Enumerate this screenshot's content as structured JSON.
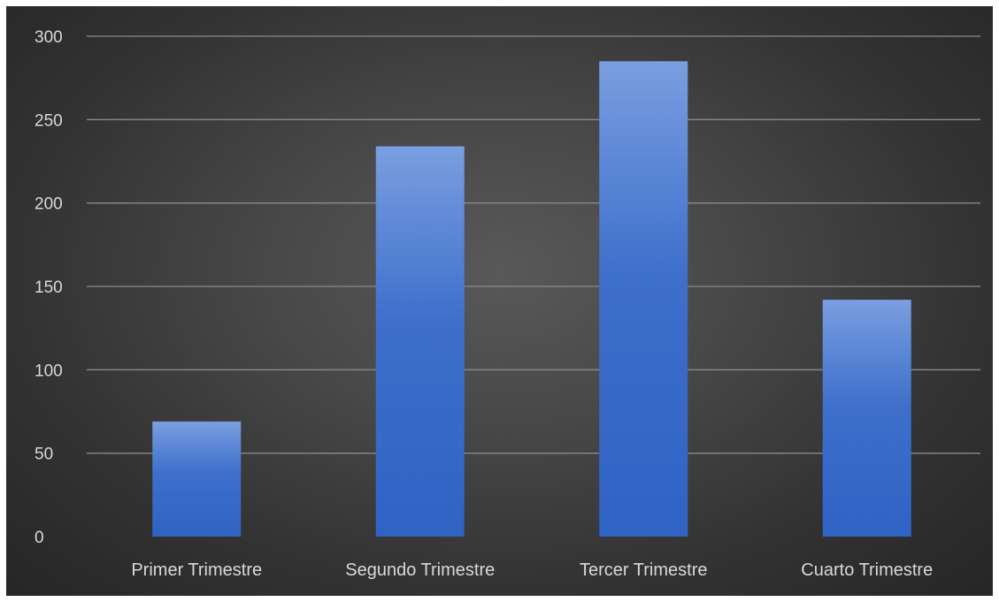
{
  "chart_data": {
    "type": "bar",
    "categories": [
      "Primer Trimestre",
      "Segundo Trimestre",
      "Tercer Trimestre",
      "Cuarto Trimestre"
    ],
    "values": [
      69,
      234,
      285,
      142
    ],
    "ylim": [
      0,
      300
    ],
    "yticks": [
      0,
      50,
      100,
      150,
      200,
      250,
      300
    ],
    "grid": true,
    "legend": "none",
    "colors": {
      "bar_top": "#7a9ee0",
      "bar_bottom": "#2f63c4",
      "text": "#d9d9d9",
      "grid": "#8a8a8a"
    }
  }
}
